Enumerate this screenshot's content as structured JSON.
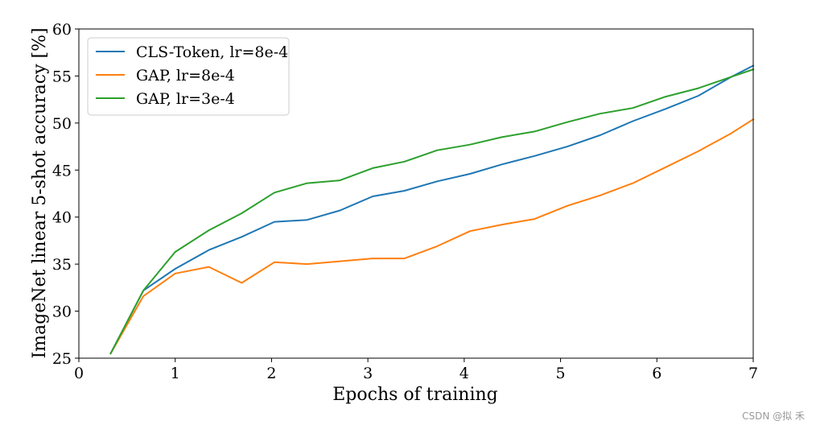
{
  "chart_data": {
    "type": "line",
    "xlabel": "Epochs of training",
    "ylabel": "ImageNet linear 5-shot accuracy [%]",
    "xlim": [
      0,
      7
    ],
    "ylim": [
      25,
      60
    ],
    "xticks": [
      0,
      1,
      2,
      3,
      4,
      5,
      6,
      7
    ],
    "yticks": [
      25,
      30,
      35,
      40,
      45,
      50,
      55,
      60
    ],
    "grid": false,
    "legend_position": "top-left",
    "x": [
      0.33,
      0.67,
      1.0,
      1.35,
      1.69,
      2.03,
      2.37,
      2.71,
      3.05,
      3.38,
      3.72,
      4.06,
      4.39,
      4.73,
      5.07,
      5.41,
      5.75,
      6.09,
      6.43,
      6.77,
      7.0
    ],
    "series": [
      {
        "name": "CLS-Token, lr=8e-4",
        "color": "#1f77b4",
        "values": [
          25.5,
          32.2,
          34.5,
          36.5,
          37.9,
          39.5,
          39.7,
          40.7,
          42.2,
          42.8,
          43.8,
          44.6,
          45.6,
          46.5,
          47.5,
          48.7,
          50.2,
          51.5,
          52.9,
          54.9,
          56.1
        ]
      },
      {
        "name": "GAP, lr=8e-4",
        "color": "#ff7f0e",
        "values": [
          25.5,
          31.6,
          34.0,
          34.7,
          33.0,
          35.2,
          35.0,
          35.3,
          35.6,
          35.6,
          36.9,
          38.5,
          39.2,
          39.8,
          41.2,
          42.3,
          43.6,
          45.3,
          47.0,
          48.9,
          50.4
        ]
      },
      {
        "name": "GAP, lr=3e-4",
        "color": "#2ca02c",
        "values": [
          25.5,
          32.2,
          36.3,
          38.6,
          40.4,
          42.6,
          43.6,
          43.9,
          45.2,
          45.9,
          47.1,
          47.7,
          48.5,
          49.1,
          50.1,
          51.0,
          51.6,
          52.8,
          53.7,
          54.9,
          55.7
        ]
      }
    ]
  },
  "watermark": "CSDN @拟 禾"
}
